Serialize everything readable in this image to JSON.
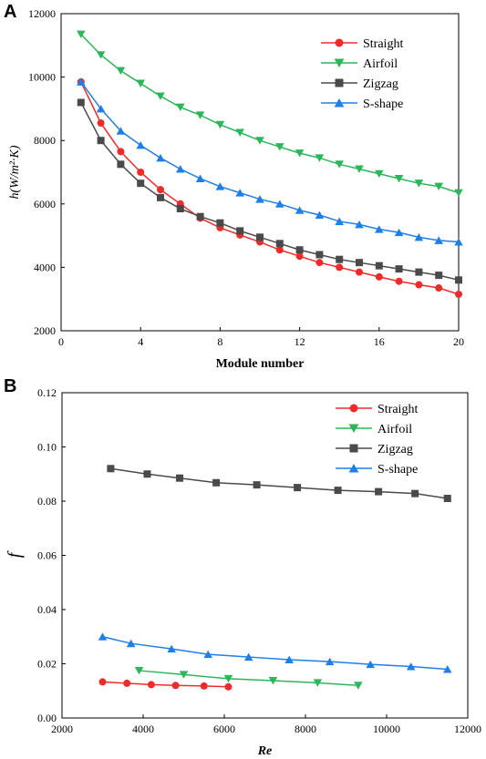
{
  "chart_data": [
    {
      "panel": "A",
      "type": "line",
      "xlabel": "Module number",
      "ylabel": "h(W/m²·K)",
      "xlim": [
        0,
        20
      ],
      "ylim": [
        2000,
        12000
      ],
      "xticks": [
        0,
        4,
        8,
        12,
        16,
        20
      ],
      "yticks": [
        2000,
        4000,
        6000,
        8000,
        10000,
        12000
      ],
      "legend_position": "top-right",
      "grid": false,
      "x": [
        1,
        2,
        3,
        4,
        5,
        6,
        7,
        8,
        9,
        10,
        11,
        12,
        13,
        14,
        15,
        16,
        17,
        18,
        19,
        20
      ],
      "series": [
        {
          "name": "Straight",
          "color": "#ee2b2b",
          "marker": "circle",
          "values": [
            9850,
            8550,
            7650,
            7000,
            6450,
            6000,
            5550,
            5250,
            5020,
            4800,
            4550,
            4350,
            4150,
            4000,
            3850,
            3700,
            3560,
            3450,
            3350,
            3150
          ]
        },
        {
          "name": "Airfoil",
          "color": "#2cb65a",
          "marker": "triangle-down",
          "values": [
            11350,
            10700,
            10200,
            9800,
            9400,
            9050,
            8800,
            8500,
            8250,
            8000,
            7800,
            7600,
            7450,
            7250,
            7100,
            6950,
            6800,
            6650,
            6550,
            6350
          ]
        },
        {
          "name": "Zigzag",
          "color": "#4a4a4a",
          "marker": "square",
          "values": [
            9200,
            8000,
            7250,
            6650,
            6200,
            5850,
            5600,
            5400,
            5150,
            4950,
            4750,
            4550,
            4400,
            4250,
            4150,
            4050,
            3950,
            3850,
            3750,
            3600
          ]
        },
        {
          "name": "S-shape",
          "color": "#1f7fe8",
          "marker": "triangle-up",
          "values": [
            9850,
            9000,
            8300,
            7850,
            7450,
            7100,
            6800,
            6550,
            6350,
            6150,
            6000,
            5800,
            5650,
            5450,
            5350,
            5200,
            5100,
            4950,
            4850,
            4800
          ]
        }
      ]
    },
    {
      "panel": "B",
      "type": "line",
      "xlabel": "Re",
      "ylabel": "f",
      "xlim": [
        2000,
        12000
      ],
      "ylim": [
        0,
        0.12
      ],
      "xticks": [
        2000,
        4000,
        6000,
        8000,
        10000,
        12000
      ],
      "yticks": [
        0,
        0.02,
        0.04,
        0.06,
        0.08,
        0.1,
        0.12
      ],
      "ytick_labels": [
        "0.00",
        "0.02",
        "0.04",
        "0.06",
        "0.08",
        "0.10",
        "0.12"
      ],
      "legend_position": "top-right",
      "grid": false,
      "series": [
        {
          "name": "Straight",
          "color": "#ee2b2b",
          "marker": "circle",
          "x": [
            3000,
            3600,
            4200,
            4800,
            5500,
            6100
          ],
          "values": [
            0.0133,
            0.0128,
            0.0123,
            0.012,
            0.0118,
            0.0115
          ]
        },
        {
          "name": "Airfoil",
          "color": "#2cb65a",
          "marker": "triangle-down",
          "x": [
            3900,
            5000,
            6100,
            7200,
            8300,
            9300
          ],
          "values": [
            0.0175,
            0.016,
            0.0145,
            0.0138,
            0.013,
            0.012
          ]
        },
        {
          "name": "Zigzag",
          "color": "#4a4a4a",
          "marker": "square",
          "x": [
            3200,
            4100,
            4900,
            5800,
            6800,
            7800,
            8800,
            9800,
            10700,
            11500
          ],
          "values": [
            0.092,
            0.09,
            0.0885,
            0.0868,
            0.086,
            0.085,
            0.084,
            0.0835,
            0.0828,
            0.081
          ]
        },
        {
          "name": "S-shape",
          "color": "#1f7fe8",
          "marker": "triangle-up",
          "x": [
            3000,
            3700,
            4700,
            5600,
            6600,
            7600,
            8600,
            9600,
            10600,
            11500
          ],
          "values": [
            0.03,
            0.0275,
            0.0255,
            0.0235,
            0.0225,
            0.0215,
            0.0208,
            0.0198,
            0.019,
            0.018
          ]
        }
      ]
    }
  ]
}
